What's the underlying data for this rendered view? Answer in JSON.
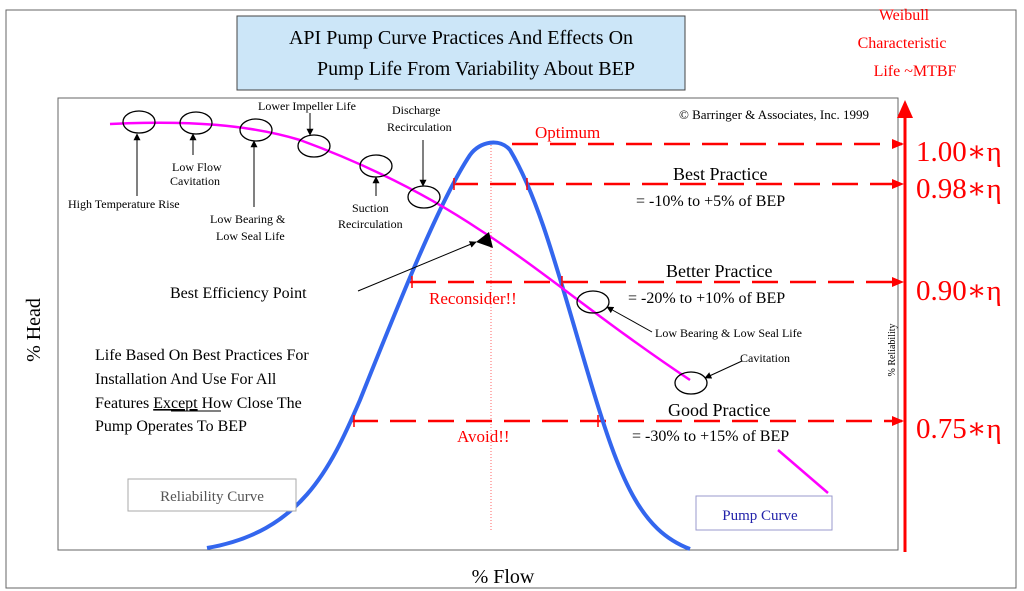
{
  "colors": {
    "reliability_curve": "#3366ee",
    "pump_curve": "#ff00ff",
    "reliability_levels": "#ff0000",
    "title_box_fill": "#cce6f8",
    "bep_marker": "#000000"
  },
  "title": {
    "line1": "API Pump Curve Practices And Effects On",
    "line2": "Pump Life From Variability About BEP"
  },
  "weibull_label": {
    "line1": "Weibull",
    "line2": "Characteristic",
    "line3": "Life ~MTBF"
  },
  "copyright": "© Barringer & Associates, Inc. 1999",
  "axes": {
    "y_label": "% Head",
    "x_label": "% Flow",
    "right_label": "% Reliability"
  },
  "levels": [
    {
      "value": "1.00∗η",
      "label": "Optimum"
    },
    {
      "value": "0.98∗η",
      "label": "Best Practice",
      "range": "= -10% to +5% of BEP"
    },
    {
      "value": "0.90∗η",
      "label": "Better Practice",
      "range": "= -20% to +10% of BEP",
      "note": "Reconsider!!"
    },
    {
      "value": "0.75∗η",
      "label": "Good Practice",
      "range": "= -30% to +15% of BEP",
      "note": "Avoid!!"
    }
  ],
  "effects": {
    "high_temperature_rise": "High Temperature Rise",
    "low_flow_cavitation_1": "Low Flow",
    "low_flow_cavitation_2": "Cavitation",
    "low_bearing_1": "Low Bearing &",
    "low_bearing_2": "Low Seal Life",
    "lower_impeller_life": "Lower Impeller Life",
    "discharge_recirc_1": "Discharge",
    "discharge_recirc_2": "Recirculation",
    "suction_recirc_1": "Suction",
    "suction_recirc_2": "Recirculation",
    "right_low_bearing": "Low Bearing  & Low Seal Life",
    "right_cavitation": "Cavitation"
  },
  "bep_label": "Best Efficiency Point",
  "note": {
    "line1": "Life Based On Best Practices For",
    "line2": "Installation And Use For All",
    "line3_a": "Features  ",
    "line3_b": "Except",
    "line3_c": " How Close The",
    "line4": "Pump Operates To BEP"
  },
  "reliability_curve_label": "Reliability Curve",
  "pump_curve_label": "Pump Curve"
}
